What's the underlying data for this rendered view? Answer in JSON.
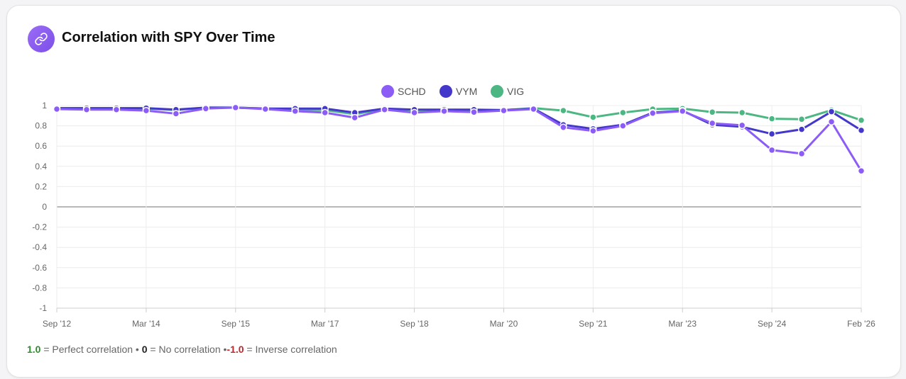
{
  "card": {
    "title": "Correlation with SPY Over Time",
    "icon": "link-icon",
    "icon_color": "#8b5cf6"
  },
  "chart_data": {
    "type": "line",
    "title": "",
    "xlabel": "",
    "ylabel": "",
    "ylim": [
      -1,
      1
    ],
    "yticks": [
      "1",
      "0.8",
      "0.6",
      "0.4",
      "0.2",
      "0",
      "-0.2",
      "-0.4",
      "-0.6",
      "-0.8",
      "-1"
    ],
    "xtick_labels": [
      "Sep '12",
      "Mar '14",
      "Sep '15",
      "Mar '17",
      "Sep '18",
      "Mar '20",
      "Sep '21",
      "Mar '23",
      "Sep '24",
      "Feb '26"
    ],
    "grid": true,
    "legend_position": "top",
    "series": [
      {
        "name": "SCHD",
        "color": "#8b5cf6",
        "values": [
          0.965,
          0.96,
          0.96,
          0.95,
          0.92,
          0.97,
          0.98,
          0.965,
          0.945,
          0.93,
          0.88,
          0.96,
          0.93,
          0.945,
          0.935,
          0.95,
          0.965,
          0.785,
          0.75,
          0.8,
          0.925,
          0.945,
          0.825,
          0.805,
          0.56,
          0.525,
          0.84,
          0.355
        ]
      },
      {
        "name": "VYM",
        "color": "#4338ca",
        "values": [
          0.975,
          0.975,
          0.975,
          0.975,
          0.96,
          0.98,
          0.98,
          0.97,
          0.97,
          0.97,
          0.93,
          0.97,
          0.96,
          0.96,
          0.96,
          0.955,
          0.97,
          0.81,
          0.77,
          0.81,
          0.93,
          0.95,
          0.81,
          0.79,
          0.72,
          0.765,
          0.94,
          0.755
        ]
      },
      {
        "name": "VIG",
        "color": "#4cb782",
        "values": [
          0.97,
          0.97,
          0.97,
          0.97,
          0.955,
          0.98,
          0.98,
          0.97,
          0.96,
          0.955,
          0.915,
          0.965,
          0.955,
          0.955,
          0.955,
          0.955,
          0.975,
          0.95,
          0.885,
          0.93,
          0.965,
          0.97,
          0.935,
          0.93,
          0.87,
          0.865,
          0.955,
          0.855
        ]
      }
    ]
  },
  "footer": {
    "perfect_value": "1.0",
    "perfect_label": " = Perfect correlation • ",
    "none_value": "0",
    "none_label": " = No correlation •",
    "inverse_value": "-1.0",
    "inverse_label": " = Inverse correlation",
    "perfect_color": "#2e8b2e",
    "inverse_color": "#c0262d"
  }
}
